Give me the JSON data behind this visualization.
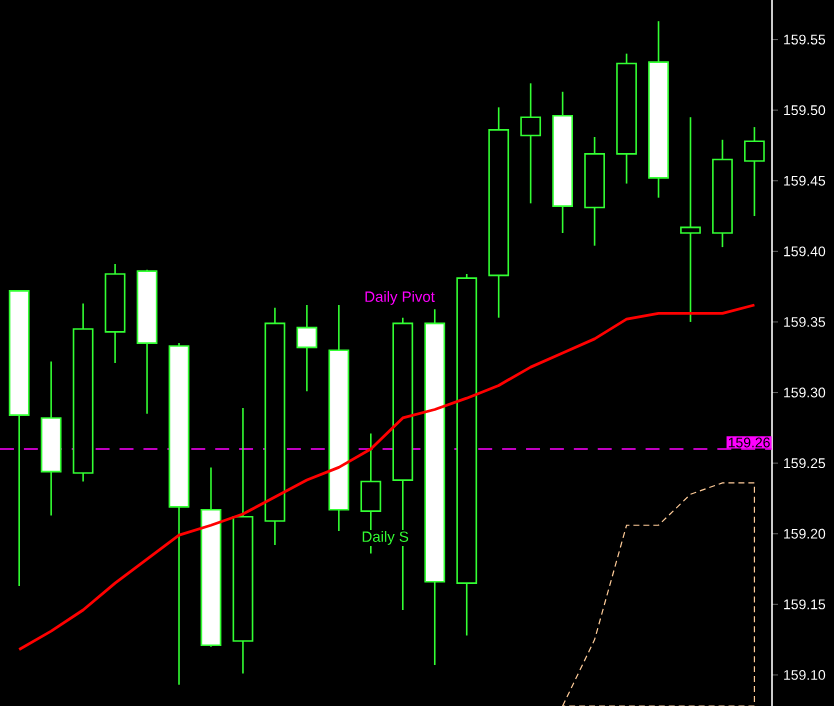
{
  "chart_data": {
    "type": "candlestick",
    "categories": [
      null,
      null,
      null,
      null,
      null,
      null,
      null,
      null,
      null,
      null,
      null,
      null,
      null,
      null,
      null,
      null,
      null,
      null,
      null,
      null,
      null,
      null,
      null,
      null
    ],
    "color": "#33ff33",
    "ohlc": [
      [
        159.372,
        159.372,
        159.163,
        159.284
      ],
      [
        159.282,
        159.322,
        159.213,
        159.244
      ],
      [
        159.243,
        159.363,
        159.237,
        159.345
      ],
      [
        159.343,
        159.391,
        159.321,
        159.384
      ],
      [
        159.386,
        159.387,
        159.285,
        159.335
      ],
      [
        159.333,
        159.335,
        159.093,
        159.219
      ],
      [
        159.217,
        159.247,
        159.12,
        159.121
      ],
      [
        159.124,
        159.289,
        159.101,
        159.212
      ],
      [
        159.209,
        159.36,
        159.192,
        159.349
      ],
      [
        159.346,
        159.362,
        159.301,
        159.332
      ],
      [
        159.33,
        159.362,
        159.202,
        159.217
      ],
      [
        159.216,
        159.271,
        159.186,
        159.237
      ],
      [
        159.238,
        159.353,
        159.146,
        159.349
      ],
      [
        159.349,
        159.359,
        159.107,
        159.166
      ],
      [
        159.165,
        159.384,
        159.128,
        159.381
      ],
      [
        159.383,
        159.502,
        159.353,
        159.486
      ],
      [
        159.482,
        159.519,
        159.434,
        159.495
      ],
      [
        159.496,
        159.513,
        159.413,
        159.432
      ],
      [
        159.431,
        159.481,
        159.404,
        159.469
      ],
      [
        159.469,
        159.54,
        159.448,
        159.533
      ],
      [
        159.534,
        159.563,
        159.438,
        159.452
      ],
      [
        159.413,
        159.495,
        159.35,
        159.417
      ],
      [
        159.413,
        159.479,
        159.403,
        159.465
      ],
      [
        159.464,
        159.488,
        159.425,
        159.478
      ]
    ],
    "series": [
      {
        "type": "line",
        "color": "#ff0000",
        "values": [
          159.118,
          159.131,
          159.146,
          159.165,
          159.182,
          159.199,
          159.206,
          159.214,
          159.226,
          159.238,
          159.247,
          159.26,
          159.282,
          159.288,
          159.296,
          159.305,
          159.318,
          159.328,
          159.338,
          159.352,
          159.356,
          159.356,
          159.356,
          159.362
        ]
      },
      {
        "type": "area",
        "color": "#ffcc99",
        "line_style": "dashed",
        "values": [
          null,
          null,
          null,
          null,
          null,
          null,
          null,
          null,
          null,
          null,
          null,
          null,
          null,
          null,
          null,
          null,
          null,
          159.078,
          159.125,
          159.206,
          159.206,
          159.228,
          159.236,
          159.236
        ]
      }
    ],
    "ylim": [
      159.078,
      159.578
    ],
    "yticks": [
      {
        "value": 159.1,
        "label": "159.10"
      },
      159.15,
      {
        "value": 159.2,
        "label": "159.20"
      },
      159.25,
      {
        "value": 159.3,
        "label": "159.30"
      },
      159.35,
      {
        "value": 159.4,
        "label": "159.40"
      },
      159.45,
      {
        "value": 159.5,
        "label": "159.50"
      },
      159.55
    ],
    "ref_lines": [
      {
        "axis": "y",
        "value": 159.26,
        "label": "159.26",
        "color": "#ff00ff",
        "line_style": "dashed"
      }
    ],
    "annotations": [
      "Daily Pivot",
      "Daily S"
    ],
    "grid": false
  }
}
